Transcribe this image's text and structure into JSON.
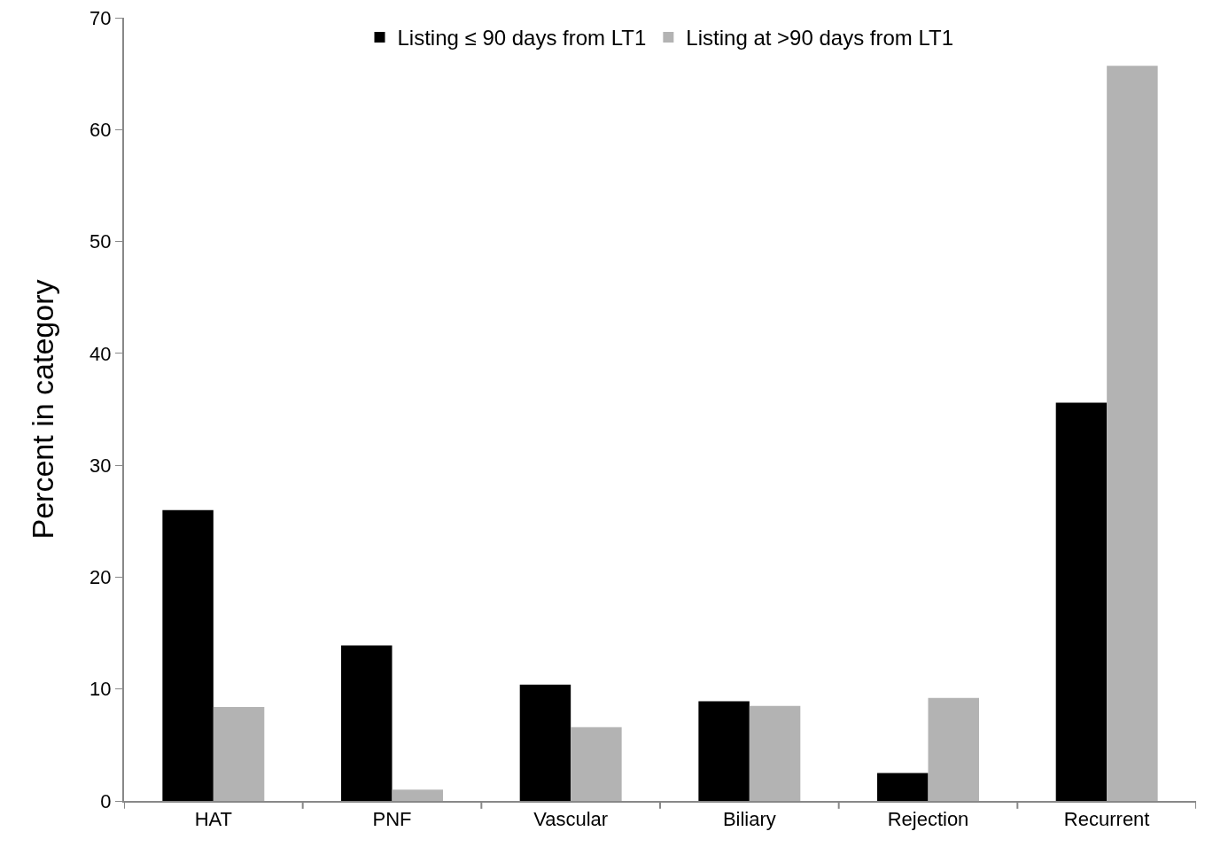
{
  "chart_data": {
    "type": "bar",
    "ylabel": "Percent in category",
    "categories": [
      "HAT",
      "PNF",
      "Vascular",
      "Biliary",
      "Rejection",
      "Recurrent"
    ],
    "series": [
      {
        "name": "Listing ≤ 90 days from LT1",
        "color": "#000000",
        "values": [
          26.0,
          13.9,
          10.4,
          8.9,
          2.5,
          35.6
        ]
      },
      {
        "name": "Listing at >90 days from LT1",
        "color": "#b3b3b3",
        "values": [
          8.4,
          1.0,
          6.6,
          8.5,
          9.2,
          65.7
        ]
      }
    ],
    "ylim": [
      0,
      70
    ],
    "yticks": [
      0,
      10,
      20,
      30,
      40,
      50,
      60,
      70
    ],
    "grid": false,
    "legend": "top"
  }
}
